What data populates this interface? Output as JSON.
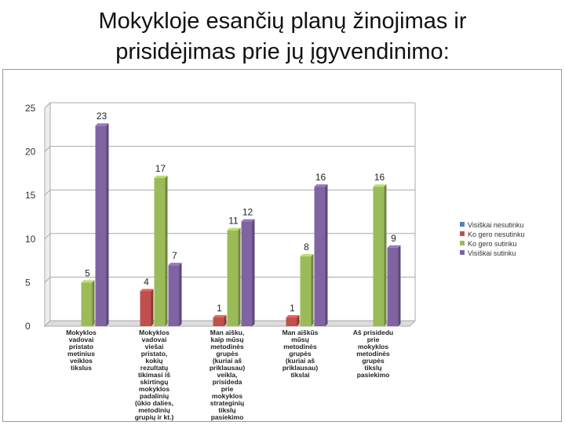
{
  "title_lines": [
    "Mokykloje esančių planų žinojimas ir",
    "prisidėjimas prie jų įgyvendinimo:"
  ],
  "chart_data": {
    "type": "bar",
    "ylim": [
      0,
      25
    ],
    "yticks": [
      0,
      5,
      10,
      15,
      20,
      25
    ],
    "grid": true,
    "legend_position": "right",
    "categories": [
      [
        "Mokyklos",
        "vadovai",
        "pristato",
        "metinius",
        "veiklos",
        "tikslus"
      ],
      [
        "Mokyklos",
        "vadovai",
        "viešai",
        "pristato,",
        "kokių",
        "rezultatų",
        "tikimasi iš",
        "skirtingų",
        "mokyklos",
        "padalinių",
        "(ūkio dalies,",
        "metodinių",
        "grupių ir kt.)"
      ],
      [
        "Man aišku,",
        "kaip mūsų",
        "metodinės",
        "grupės",
        "(kuriai aš",
        "priklausau)",
        "veikla,",
        "prisideda",
        "prie",
        "mokyklos",
        "strateginių",
        "tikslų",
        "pasiekimo"
      ],
      [
        "Man aiškūs",
        "mūsų",
        "metodinės",
        "grupės",
        "(kuriai aš",
        "priklausau)",
        "tikslai"
      ],
      [
        "Aš prisidedu",
        "prie",
        "mokyklos",
        "metodinės",
        "grupės",
        "tikslų",
        "pasiekimo"
      ]
    ],
    "series": [
      {
        "name": "Visiškai nesutinku",
        "color": "#4f81bd",
        "values": [
          0,
          0,
          0,
          0,
          0
        ]
      },
      {
        "name": "Ko gero nesutinku",
        "color": "#c0504d",
        "values": [
          0,
          4,
          1,
          1,
          0
        ]
      },
      {
        "name": "Ko gero sutinku",
        "color": "#9bbb59",
        "values": [
          5,
          17,
          11,
          8,
          16
        ]
      },
      {
        "name": "Visiškai sutinku",
        "color": "#8064a2",
        "values": [
          23,
          7,
          12,
          16,
          9
        ]
      }
    ]
  }
}
